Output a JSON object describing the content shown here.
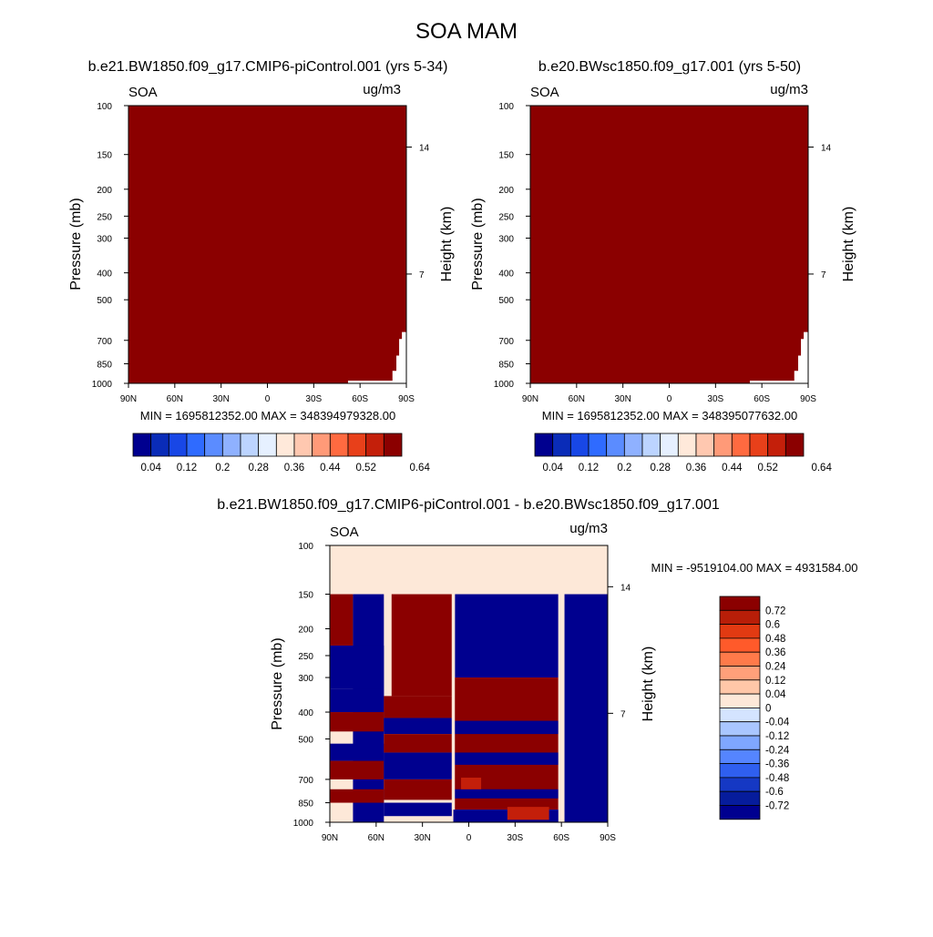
{
  "figure": {
    "title": "SOA MAM"
  },
  "panels": [
    {
      "subtitle": "b.e21.BW1850.f09_g17.CMIP6-piControl.001 (yrs 5-34)",
      "var_label": "SOA",
      "units": "ug/m3",
      "min_max": "MIN = 1695812352.00  MAX = 348394979328.00",
      "ylabel": "Pressure (mb)",
      "ylabel_right": "Height (km)"
    },
    {
      "subtitle": "b.e20.BWsc1850.f09_g17.001 (yrs 5-50)",
      "var_label": "SOA",
      "units": "ug/m3",
      "min_max": "MIN = 1695812352.00  MAX = 348395077632.00",
      "ylabel": "Pressure (mb)",
      "ylabel_right": "Height (km)"
    },
    {
      "subtitle": "b.e21.BW1850.f09_g17.CMIP6-piControl.001 - b.e20.BWsc1850.f09_g17.001",
      "var_label": "SOA",
      "units": "ug/m3",
      "min_max": "MIN = -9519104.00  MAX = 4931584.00",
      "ylabel": "Pressure (mb)",
      "ylabel_right": "Height (km)"
    }
  ],
  "chart_data": [
    {
      "type": "heatmap",
      "title": "b.e21.BW1850.f09_g17.CMIP6-piControl.001 (yrs 5-34)",
      "variable": "SOA",
      "units": "ug/m3",
      "xlabel": "",
      "ylabel": "Pressure (mb)",
      "ylabel_right": "Height (km)",
      "x_ticks": [
        "90N",
        "60N",
        "30N",
        "0",
        "30S",
        "60S",
        "90S"
      ],
      "x_tick_values": [
        90,
        60,
        30,
        0,
        -30,
        -60,
        -90
      ],
      "xlim": [
        90,
        -90
      ],
      "y_ticks": [
        "100",
        "150",
        "200",
        "250",
        "300",
        "400",
        "500",
        "700",
        "850",
        "1000"
      ],
      "y_tick_values": [
        100,
        150,
        200,
        250,
        300,
        400,
        500,
        700,
        850,
        1000
      ],
      "ylim": [
        100,
        1000
      ],
      "y_scale": "log",
      "y_right_ticks": [
        "14",
        "7"
      ],
      "y_right_tick_pressures": [
        141,
        404
      ],
      "colorbar": {
        "levels": [
          0.04,
          0.08,
          0.12,
          0.16,
          0.2,
          0.24,
          0.28,
          0.32,
          0.36,
          0.4,
          0.44,
          0.48,
          0.52,
          0.56,
          0.6,
          0.64
        ],
        "label_levels": [
          "0.04",
          "0.12",
          "0.2",
          "0.28",
          "0.36",
          "0.44",
          "0.52",
          "0.64"
        ],
        "colors": [
          "#00008f",
          "#0a2cb8",
          "#1847e6",
          "#2f6bff",
          "#5b8cff",
          "#8fb1ff",
          "#bcd4ff",
          "#e6f0ff",
          "#ffe9da",
          "#ffc8b0",
          "#ff9a78",
          "#ff6a40",
          "#e8401a",
          "#c41f0a",
          "#8b0000"
        ],
        "orientation": "horizontal"
      },
      "field_color": "#8b0000",
      "blank_region": "lower-right near surface south of 55S",
      "min": 1695812352.0,
      "max": 348394979328.0
    },
    {
      "type": "heatmap",
      "title": "b.e20.BWsc1850.f09_g17.001 (yrs 5-50)",
      "variable": "SOA",
      "units": "ug/m3",
      "xlabel": "",
      "ylabel": "Pressure (mb)",
      "ylabel_right": "Height (km)",
      "x_ticks": [
        "90N",
        "60N",
        "30N",
        "0",
        "30S",
        "60S",
        "90S"
      ],
      "x_tick_values": [
        90,
        60,
        30,
        0,
        -30,
        -60,
        -90
      ],
      "xlim": [
        90,
        -90
      ],
      "y_ticks": [
        "100",
        "150",
        "200",
        "250",
        "300",
        "400",
        "500",
        "700",
        "850",
        "1000"
      ],
      "y_tick_values": [
        100,
        150,
        200,
        250,
        300,
        400,
        500,
        700,
        850,
        1000
      ],
      "ylim": [
        100,
        1000
      ],
      "y_scale": "log",
      "y_right_ticks": [
        "14",
        "7"
      ],
      "y_right_tick_pressures": [
        141,
        404
      ],
      "colorbar": {
        "levels": [
          0.04,
          0.08,
          0.12,
          0.16,
          0.2,
          0.24,
          0.28,
          0.32,
          0.36,
          0.4,
          0.44,
          0.48,
          0.52,
          0.56,
          0.6,
          0.64
        ],
        "label_levels": [
          "0.04",
          "0.12",
          "0.2",
          "0.28",
          "0.36",
          "0.44",
          "0.52",
          "0.64"
        ],
        "colors": [
          "#00008f",
          "#0a2cb8",
          "#1847e6",
          "#2f6bff",
          "#5b8cff",
          "#8fb1ff",
          "#bcd4ff",
          "#e6f0ff",
          "#ffe9da",
          "#ffc8b0",
          "#ff9a78",
          "#ff6a40",
          "#e8401a",
          "#c41f0a",
          "#8b0000"
        ],
        "orientation": "horizontal"
      },
      "field_color": "#8b0000",
      "blank_region": "lower-right near surface south of 55S",
      "min": 1695812352.0,
      "max": 348395077632.0
    },
    {
      "type": "heatmap",
      "title": "b.e21.BW1850.f09_g17.CMIP6-piControl.001 - b.e20.BWsc1850.f09_g17.001",
      "variable": "SOA",
      "units": "ug/m3",
      "xlabel": "",
      "ylabel": "Pressure (mb)",
      "ylabel_right": "Height (km)",
      "x_ticks": [
        "90N",
        "60N",
        "30N",
        "0",
        "30S",
        "60S",
        "90S"
      ],
      "x_tick_values": [
        90,
        60,
        30,
        0,
        -30,
        -60,
        -90
      ],
      "xlim": [
        90,
        -90
      ],
      "y_ticks": [
        "100",
        "150",
        "200",
        "250",
        "300",
        "400",
        "500",
        "700",
        "850",
        "1000"
      ],
      "y_tick_values": [
        100,
        150,
        200,
        250,
        300,
        400,
        500,
        700,
        850,
        1000
      ],
      "ylim": [
        100,
        1000
      ],
      "y_scale": "log",
      "y_right_ticks": [
        "14",
        "7"
      ],
      "y_right_tick_pressures": [
        141,
        404
      ],
      "colorbar": {
        "levels": [
          0.72,
          0.6,
          0.48,
          0.36,
          0.24,
          0.12,
          0.04,
          0,
          -0.04,
          -0.12,
          -0.24,
          -0.36,
          -0.48,
          -0.6,
          -0.72
        ],
        "label_levels": [
          "0.72",
          "0.6",
          "0.48",
          "0.36",
          "0.24",
          "0.12",
          "0.04",
          "0",
          "-0.04",
          "-0.12",
          "-0.24",
          "-0.36",
          "-0.48",
          "-0.6",
          "-0.72"
        ],
        "colors": [
          "#8b0000",
          "#b81e08",
          "#e23a12",
          "#ff5a2a",
          "#ff7a4a",
          "#ffa07a",
          "#ffc7a8",
          "#fde8d8",
          "#d4e4ff",
          "#a9c6ff",
          "#7fa7ff",
          "#5585ff",
          "#2f5fef",
          "#1538c4",
          "#061c9c",
          "#00008f"
        ],
        "orientation": "vertical"
      },
      "top_layer": {
        "pressure_range": [
          100,
          150
        ],
        "color": "#fde8d8"
      },
      "bands": [
        {
          "lat_range": [
            90,
            75
          ],
          "pressure_range": [
            150,
            230
          ],
          "sign": "positive"
        },
        {
          "lat_range": [
            75,
            55
          ],
          "pressure_range": [
            150,
            1000
          ],
          "sign": "negative"
        },
        {
          "lat_range": [
            50,
            11
          ],
          "pressure_range": [
            150,
            350
          ],
          "sign": "positive"
        },
        {
          "lat_range": [
            9,
            -58
          ],
          "pressure_range": [
            150,
            300
          ],
          "sign": "negative"
        },
        {
          "lat_range": [
            10,
            -58
          ],
          "pressure_range": [
            300,
            900
          ],
          "sign": "positive"
        },
        {
          "lat_range": [
            -62,
            -90
          ],
          "pressure_range": [
            150,
            1000
          ],
          "sign": "negative"
        }
      ],
      "min": -9519104.0,
      "max": 4931584.0
    }
  ]
}
